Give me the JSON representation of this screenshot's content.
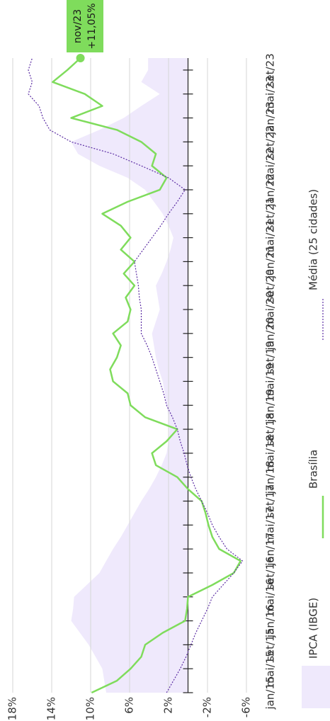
{
  "chart_data": {
    "type": "line",
    "x": [
      0,
      2,
      4,
      6,
      8,
      10,
      12,
      14,
      16,
      18,
      20,
      22,
      24,
      26,
      28,
      30,
      32,
      34,
      36,
      38,
      40,
      42,
      44,
      46,
      48,
      50,
      52,
      54,
      56,
      58,
      60,
      62,
      64,
      66,
      68,
      70,
      72,
      74,
      76,
      78,
      80,
      82,
      84,
      86,
      88,
      90,
      92,
      94,
      96,
      98,
      100,
      102,
      104,
      106
    ],
    "series": [
      {
        "name": "IPCA (IBGE)",
        "color": "#efe9fc",
        "kind": "area",
        "values": [
          8.4,
          8.6,
          8.8,
          9.5,
          10.2,
          11.1,
          12,
          11.8,
          11.7,
          10.4,
          9.1,
          8.4,
          7.7,
          6.9,
          6.2,
          5.5,
          4.8,
          4,
          3.3,
          2.7,
          2.2,
          2,
          1.9,
          2,
          2.2,
          2.4,
          2.6,
          3,
          3.3,
          3.5,
          3.7,
          3.3,
          2.9,
          3.1,
          3.3,
          2.7,
          2.2,
          1.8,
          1.5,
          2,
          2.6,
          3.5,
          4.4,
          6.2,
          9.1,
          11.3,
          12,
          9.1,
          6.6,
          4.8,
          2.9,
          4.8,
          4.1,
          4.1
        ]
      },
      {
        "name": "Brasília",
        "color": "#7fdc5c",
        "kind": "line",
        "values": [
          9.9,
          7.3,
          5.9,
          4.8,
          4.4,
          2.6,
          0.3,
          0.1,
          0,
          -2.5,
          -4.7,
          -5.4,
          -3.2,
          -2.5,
          -2.1,
          -1.8,
          -1.4,
          0,
          1.1,
          3.3,
          3.7,
          2.2,
          1.1,
          4.4,
          5.9,
          6.2,
          7.7,
          8,
          7.3,
          6.9,
          7.7,
          6.2,
          5.9,
          6.4,
          5.5,
          6.6,
          5.5,
          6.9,
          5.9,
          6.9,
          8.8,
          6.2,
          2.9,
          2.2,
          3.7,
          3.3,
          4.8,
          7.3,
          12,
          8.8,
          10.6,
          13.9,
          12.4,
          11.05
        ]
      },
      {
        "name": "Média (25 cidades)",
        "color": "#5b2ca3",
        "kind": "dotted",
        "values": [
          2.2,
          1.5,
          0.8,
          0.2,
          -0.3,
          -0.8,
          -1.4,
          -2,
          -2.5,
          -3.6,
          -4.7,
          -5.6,
          -4,
          -3.2,
          -2.5,
          -2,
          -1.4,
          -0.8,
          -0.3,
          0.1,
          0.4,
          0.8,
          1.1,
          1.6,
          2.2,
          2.5,
          2.9,
          3.3,
          3.7,
          4.2,
          4.8,
          4.8,
          4.8,
          5,
          5.1,
          5.3,
          5.5,
          4.6,
          3.7,
          2.8,
          2,
          1.1,
          0.3,
          2,
          4.8,
          7.7,
          12,
          14.2,
          14.9,
          15.3,
          16.4,
          16,
          16.4,
          16
        ]
      }
    ],
    "xlim": [
      0,
      106
    ],
    "xticks": [
      {
        "value": 0,
        "label": "jan/15"
      },
      {
        "value": 4,
        "label": "mai/15"
      },
      {
        "value": 8,
        "label": "set/15"
      },
      {
        "value": 12,
        "label": "jan/16"
      },
      {
        "value": 16,
        "label": "mai/16"
      },
      {
        "value": 20,
        "label": "set/16"
      },
      {
        "value": 24,
        "label": "jan/17"
      },
      {
        "value": 28,
        "label": "mai/17"
      },
      {
        "value": 32,
        "label": "set/17"
      },
      {
        "value": 36,
        "label": "jan/18"
      },
      {
        "value": 40,
        "label": "mai/18"
      },
      {
        "value": 44,
        "label": "set/18"
      },
      {
        "value": 48,
        "label": "jan/19"
      },
      {
        "value": 52,
        "label": "mai/19"
      },
      {
        "value": 56,
        "label": "set/19"
      },
      {
        "value": 60,
        "label": "jan/20"
      },
      {
        "value": 64,
        "label": "mai/20"
      },
      {
        "value": 68,
        "label": "set/20"
      },
      {
        "value": 72,
        "label": "jan/21"
      },
      {
        "value": 76,
        "label": "mai/21"
      },
      {
        "value": 80,
        "label": "set/21"
      },
      {
        "value": 84,
        "label": "jan/22"
      },
      {
        "value": 88,
        "label": "mai/22"
      },
      {
        "value": 92,
        "label": "set/22"
      },
      {
        "value": 96,
        "label": "jan/23"
      },
      {
        "value": 100,
        "label": "mai/23"
      },
      {
        "value": 104,
        "label": "set/23"
      }
    ],
    "ylim": [
      -6,
      18
    ],
    "yticks": [
      {
        "value": 18,
        "label": "18%"
      },
      {
        "value": 14,
        "label": "14%"
      },
      {
        "value": 10,
        "label": "10%"
      },
      {
        "value": 6,
        "label": "6%"
      },
      {
        "value": 2,
        "label": "2%"
      },
      {
        "value": -2,
        "label": "-2%"
      },
      {
        "value": -6,
        "label": "-6%"
      }
    ],
    "grid": true,
    "annotation": {
      "label": "nov/23",
      "text": "+11,05%"
    }
  }
}
